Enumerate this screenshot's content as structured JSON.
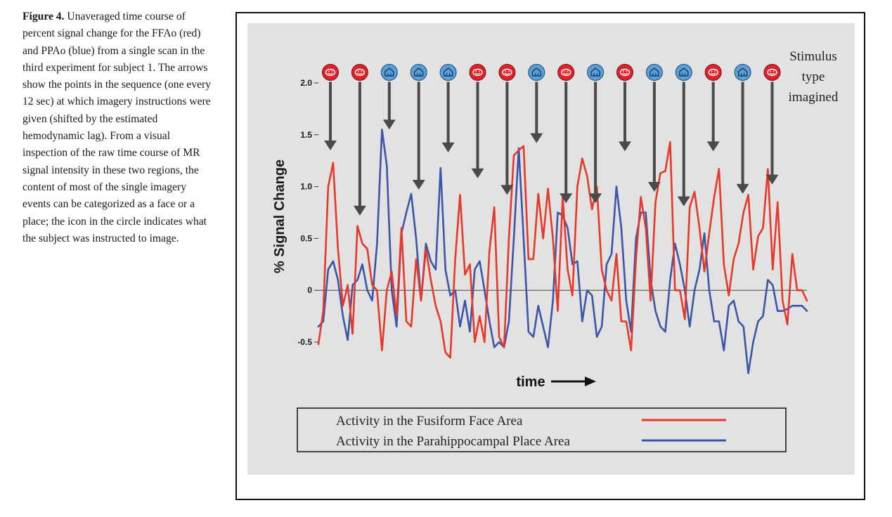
{
  "caption": {
    "label": "Figure 4.",
    "text": "Unaveraged time course of percent signal change for the FFAo (red) and PPAo (blue) from a single scan in the third experiment for subject 1. The arrows show the points in the sequence (one every 12 sec) at which imagery instructions were given (shifted by the estimated hemodynamic lag). From a visual inspection of the raw time course of MR signal intensity in these two regions, the content of most of the single imagery events can be categorized as a face or a place; the icon in the circle indicates what the subject was instructed to image."
  },
  "colors": {
    "face": "#e8382a",
    "place": "#3b55a8",
    "panel_bg": "#e2e2e2",
    "arrow": "#4a4a4a",
    "face_icon": "#e0202a",
    "place_icon": "#5aa0d8"
  },
  "chart_data": {
    "type": "line",
    "title": "",
    "xlabel": "time",
    "ylabel": "% Signal Change",
    "xlim": [
      0,
      100
    ],
    "ylim": [
      -0.6,
      2.0
    ],
    "yticks": [
      -0.5,
      0,
      0.5,
      1.0,
      1.5,
      2.0
    ],
    "ytick_labels": [
      "-0.5",
      "0",
      "0.5",
      "1.0",
      "1.5",
      "2.0"
    ],
    "zero_line": true,
    "grid": false,
    "legend_position": "bottom",
    "x": [
      0,
      1,
      2,
      3,
      4,
      5,
      6,
      7,
      8,
      9,
      10,
      11,
      12,
      13,
      14,
      15,
      16,
      17,
      18,
      19,
      20,
      21,
      22,
      23,
      24,
      25,
      26,
      27,
      28,
      29,
      30,
      31,
      32,
      33,
      34,
      35,
      36,
      37,
      38,
      39,
      40,
      41,
      42,
      43,
      44,
      45,
      46,
      47,
      48,
      49,
      50,
      51,
      52,
      53,
      54,
      55,
      56,
      57,
      58,
      59,
      60,
      61,
      62,
      63,
      64,
      65,
      66,
      67,
      68,
      69,
      70,
      71,
      72,
      73,
      74,
      75,
      76,
      77,
      78,
      79,
      80,
      81,
      82,
      83,
      84,
      85,
      86,
      87,
      88,
      89,
      90,
      91,
      92,
      93,
      94,
      95,
      96,
      97,
      98,
      99,
      100
    ],
    "series": [
      {
        "name": "Activity in the Fusiform Face Area",
        "color": "#e8382a",
        "values": [
          -0.52,
          -0.2,
          1.0,
          1.23,
          0.4,
          -0.15,
          0.05,
          -0.42,
          0.62,
          0.45,
          0.4,
          0.05,
          0.0,
          -0.58,
          0.0,
          0.18,
          -0.25,
          0.6,
          -0.3,
          -0.35,
          0.3,
          -0.1,
          0.4,
          0.1,
          -0.15,
          -0.3,
          -0.6,
          -0.65,
          0.3,
          0.92,
          0.15,
          0.25,
          -0.5,
          -0.25,
          -0.5,
          0.38,
          0.8,
          -0.45,
          -0.55,
          0.5,
          1.3,
          1.35,
          1.39,
          0.3,
          0.3,
          0.93,
          0.5,
          0.98,
          0.5,
          -0.2,
          0.9,
          0.2,
          -0.05,
          1.0,
          1.27,
          1.1,
          0.78,
          1.0,
          0.2,
          0.0,
          -0.1,
          0.35,
          -0.3,
          -0.3,
          -0.58,
          0.3,
          0.9,
          0.6,
          -0.1,
          0.85,
          1.13,
          1.15,
          1.43,
          0.0,
          0.0,
          -0.28,
          0.8,
          0.95,
          0.6,
          0.18,
          0.55,
          0.9,
          1.17,
          0.25,
          -0.05,
          0.3,
          0.45,
          0.75,
          0.92,
          0.2,
          0.52,
          0.6,
          1.17,
          0.2,
          0.85,
          -0.1,
          -0.33,
          0.35,
          0.0,
          0.0,
          -0.1
        ]
      },
      {
        "name": "Activity in the Parahippocampal Place Area",
        "color": "#3b55a8",
        "values": [
          -0.35,
          -0.3,
          0.2,
          0.28,
          0.1,
          -0.25,
          -0.48,
          0.05,
          0.1,
          0.25,
          0.0,
          -0.1,
          0.45,
          1.55,
          1.2,
          0.0,
          -0.35,
          0.55,
          0.75,
          0.93,
          0.5,
          -0.1,
          0.45,
          0.28,
          0.2,
          1.18,
          0.2,
          -0.05,
          0.0,
          -0.35,
          -0.1,
          -0.4,
          0.2,
          0.28,
          0.0,
          -0.3,
          -0.55,
          -0.5,
          -0.55,
          -0.3,
          0.5,
          1.37,
          0.5,
          -0.4,
          -0.45,
          -0.15,
          -0.35,
          -0.55,
          -0.1,
          0.75,
          0.72,
          0.6,
          0.25,
          0.28,
          -0.3,
          0.0,
          -0.05,
          -0.45,
          -0.35,
          0.25,
          0.35,
          1.0,
          0.6,
          -0.1,
          -0.4,
          0.5,
          0.75,
          0.75,
          0.1,
          -0.2,
          -0.35,
          -0.4,
          0.1,
          0.45,
          0.25,
          0.0,
          -0.35,
          0.0,
          0.2,
          0.55,
          0.0,
          -0.3,
          -0.3,
          -0.58,
          -0.15,
          -0.1,
          -0.3,
          -0.35,
          -0.8,
          -0.5,
          -0.3,
          -0.25,
          0.1,
          0.05,
          -0.2,
          -0.2,
          -0.18,
          -0.15,
          -0.15,
          -0.15,
          -0.2
        ]
      }
    ]
  },
  "stimulus": {
    "title_lines": [
      "Stimulus",
      "type",
      "imagined"
    ],
    "sequence": [
      "face",
      "face",
      "place",
      "place",
      "place",
      "face",
      "face",
      "place",
      "face",
      "place",
      "face",
      "place",
      "place",
      "face",
      "place",
      "face"
    ],
    "arrow_tip_values": [
      1.35,
      0.72,
      1.55,
      0.97,
      1.33,
      1.08,
      0.92,
      1.42,
      0.84,
      0.84,
      1.34,
      0.95,
      0.81,
      1.34,
      0.93,
      1.02
    ]
  },
  "legend": {
    "items": [
      {
        "label": "Activity in the Fusiform Face Area",
        "color": "#e8382a"
      },
      {
        "label": "Activity in the Parahippocampal Place Area",
        "color": "#3b55a8"
      }
    ]
  }
}
